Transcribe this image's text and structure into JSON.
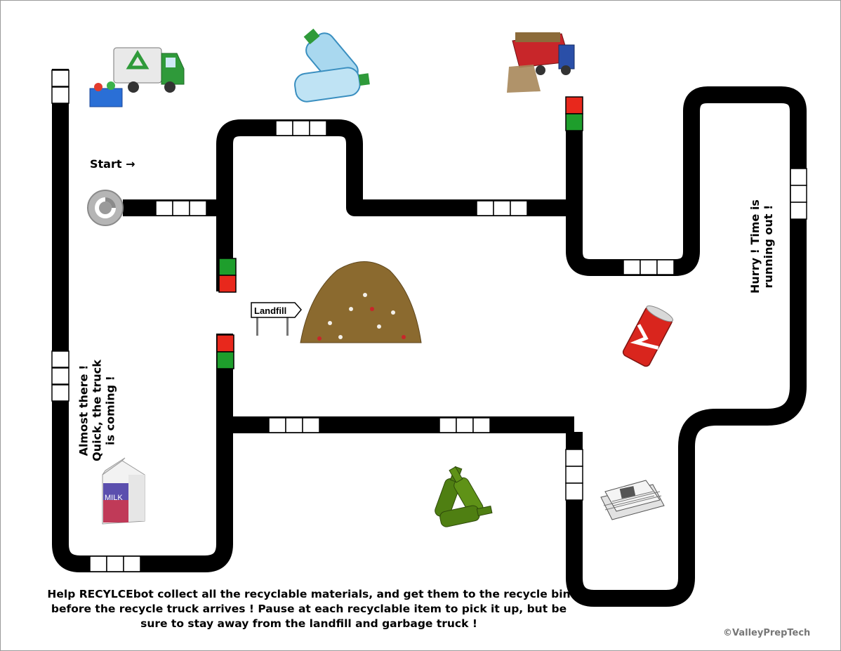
{
  "game": {
    "start_label": "Start →",
    "landfill_sign": "Landfill",
    "almost_line1": "Almost there !",
    "almost_line2": "Quick, the truck",
    "almost_line3": "is coming !",
    "hurry_line1": "Hurry ! Time is",
    "hurry_line2": "running out !",
    "milk_label": "MILK",
    "instructions_part1": "Help ",
    "instructions_brand": "RECYLCE",
    "instructions_part2": "bot collect all the recyclable materials, and get them to the recycle bin before the recycle truck arrives ! Pause at each recyclable item to pick it up, but be sure to stay away from the landfill and garbage truck !",
    "copyright": "©ValleyPrepTech"
  },
  "colors": {
    "track": "#000000",
    "stop_red": "#e8281c",
    "go_green": "#1e9e2c",
    "truck_green": "#2f9a3a",
    "can_red": "#d9251d",
    "bottle_green": "#4f7f12",
    "water_bottle": "#a9d8ef"
  },
  "icons": [
    "recycle-truck-icon",
    "water-bottles-icon",
    "garbage-truck-icon",
    "robot-start-icon",
    "landfill-pile-icon",
    "soda-can-icon",
    "milk-carton-icon",
    "glass-bottles-icon",
    "newspapers-icon"
  ]
}
